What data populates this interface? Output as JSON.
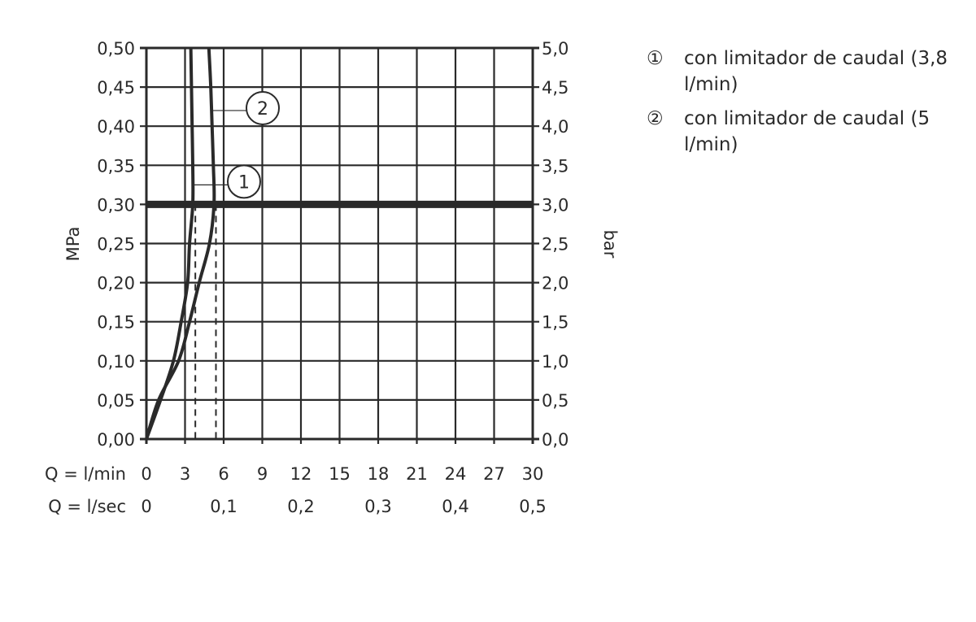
{
  "chart_data": {
    "type": "line",
    "xlabel_rows": [
      "Q = l/min",
      "Q = l/sec"
    ],
    "ylabel_left": "MPa",
    "ylabel_right": "bar",
    "xlim": [
      0,
      30
    ],
    "ylim": [
      0,
      0.5
    ],
    "grid": true,
    "x_ticks": [
      "0",
      "3",
      "6",
      "9",
      "12",
      "15",
      "18",
      "21",
      "24",
      "27",
      "30"
    ],
    "x_ticks_lsec": [
      "0",
      "0,1",
      "0,2",
      "0,3",
      "0,4",
      "0,5"
    ],
    "y_ticks_left": [
      "0,00",
      "0,05",
      "0,10",
      "0,15",
      "0,20",
      "0,25",
      "0,30",
      "0,35",
      "0,40",
      "0,45",
      "0,50"
    ],
    "y_ticks_right": [
      "0,0",
      "0,5",
      "1,0",
      "1,5",
      "2,0",
      "2,5",
      "3,0",
      "3,5",
      "4,0",
      "4,5",
      "5,0"
    ],
    "reference_line_mpa": 0.3,
    "dashed_lines_lmin": [
      3.8,
      5.4
    ],
    "series": [
      {
        "name": "1",
        "x": [
          0,
          1.1,
          2.1,
          2.7,
          3.2,
          3.35,
          3.6,
          3.6,
          3.55,
          3.5,
          3.45
        ],
        "y": [
          0,
          0.05,
          0.1,
          0.15,
          0.2,
          0.25,
          0.3,
          0.35,
          0.4,
          0.45,
          0.5
        ]
      },
      {
        "name": "2",
        "x": [
          0,
          0.95,
          2.5,
          3.35,
          4.1,
          4.9,
          5.25,
          5.2,
          5.1,
          5.0,
          4.85
        ],
        "y": [
          0,
          0.05,
          0.1,
          0.15,
          0.2,
          0.25,
          0.3,
          0.35,
          0.4,
          0.45,
          0.5
        ]
      }
    ],
    "legend": [
      {
        "marker": "①",
        "label": "con limitador de caudal (3,8 l/min)"
      },
      {
        "marker": "②",
        "label": "con limitador de caudal (5 l/min)"
      }
    ],
    "colors": {
      "ink": "#2a2a2a"
    }
  }
}
